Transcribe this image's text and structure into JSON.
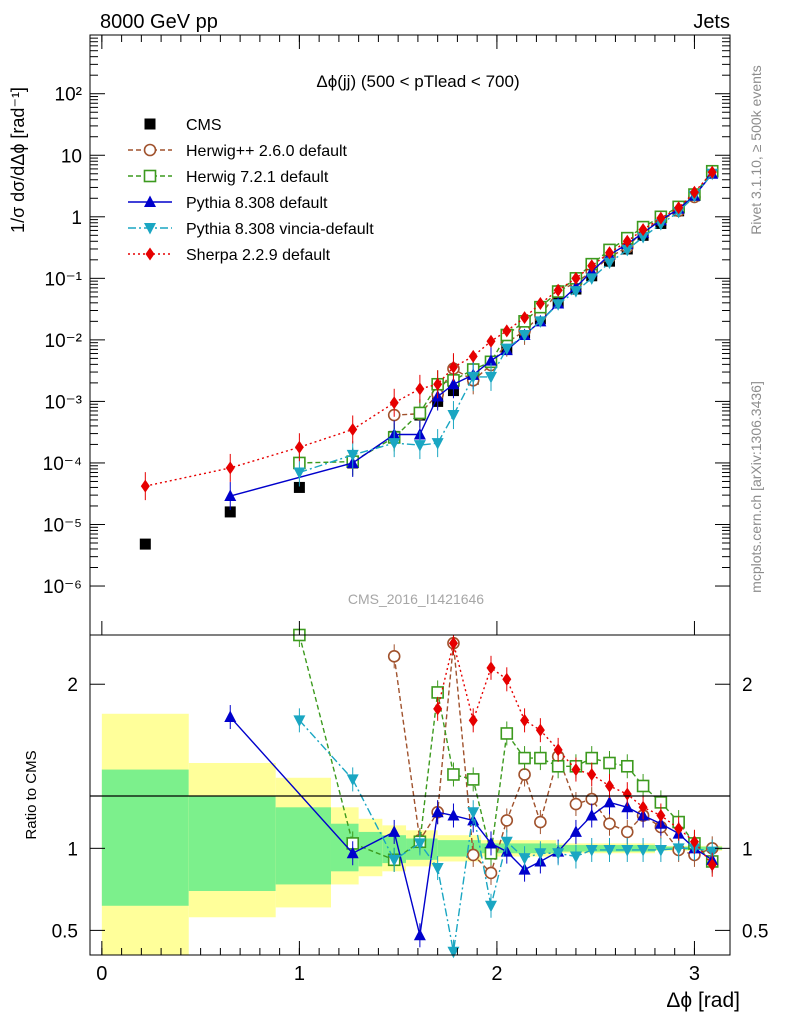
{
  "header": {
    "left": "8000 GeV pp",
    "right": "Jets"
  },
  "side": {
    "rivet": "Rivet 3.1.10, ≥ 500k events",
    "mcplots": "mcplots.cern.ch [arXiv:1306.3436]"
  },
  "watermark": "CMS_2016_I1421646",
  "colors": {
    "cms": "#000000",
    "herwigpp": "#a0522d",
    "herwig7": "#3c9a1e",
    "pythia": "#0000cc",
    "vincia": "#1aa6c2",
    "sherpa": "#e60000",
    "band_inner": "#7cf08c",
    "band_outer": "#ffff9a"
  },
  "chart_data": {
    "type": "line",
    "title": "Δϕ(jj) (500 < pTlead <  700)",
    "xlabel": "Δϕ [rad]",
    "ylabel": "1/σ dσ/dΔϕ [rad⁻¹]",
    "ratio_ylabel": "Ratio to CMS",
    "xlim": [
      -0.06,
      3.18
    ],
    "ylim_log": [
      1.6e-07,
      900.0
    ],
    "ratio_ylim": [
      0.35,
      2.3
    ],
    "x_ticks": [
      "0",
      "1",
      "2",
      "3"
    ],
    "y_ticks": [
      "10⁻⁶",
      "10⁻⁵",
      "10⁻⁴",
      "10⁻³",
      "10⁻²",
      "10⁻¹",
      "1",
      "10",
      "10²"
    ],
    "ratio_ticks": [
      "0.5",
      "1",
      "2"
    ],
    "bands": [
      {
        "lo": 0.0,
        "hi": 0.44,
        "inner": [
          0.65,
          1.48
        ],
        "outer": [
          0.35,
          1.82
        ]
      },
      {
        "lo": 0.44,
        "hi": 0.88,
        "inner": [
          0.74,
          1.32
        ],
        "outer": [
          0.58,
          1.52
        ]
      },
      {
        "lo": 0.88,
        "hi": 1.16,
        "inner": [
          0.78,
          1.25
        ],
        "outer": [
          0.64,
          1.43
        ]
      },
      {
        "lo": 1.16,
        "hi": 1.3,
        "inner": [
          0.86,
          1.15
        ],
        "outer": [
          0.78,
          1.25
        ]
      },
      {
        "lo": 1.3,
        "hi": 1.42,
        "inner": [
          0.89,
          1.1
        ],
        "outer": [
          0.83,
          1.18
        ]
      },
      {
        "lo": 1.42,
        "hi": 1.54,
        "inner": [
          0.91,
          1.08
        ],
        "outer": [
          0.86,
          1.14
        ]
      },
      {
        "lo": 1.54,
        "hi": 1.7,
        "inner": [
          0.93,
          1.06
        ],
        "outer": [
          0.89,
          1.11
        ]
      },
      {
        "lo": 1.7,
        "hi": 1.92,
        "inner": [
          0.95,
          1.05
        ],
        "outer": [
          0.92,
          1.08
        ]
      },
      {
        "lo": 1.92,
        "hi": 2.3,
        "inner": [
          0.97,
          1.03
        ],
        "outer": [
          0.95,
          1.05
        ]
      },
      {
        "lo": 2.3,
        "hi": 2.8,
        "inner": [
          0.98,
          1.02
        ],
        "outer": [
          0.97,
          1.03
        ]
      },
      {
        "lo": 2.8,
        "hi": 3.14,
        "inner": [
          0.99,
          1.01
        ],
        "outer": [
          0.985,
          1.015
        ]
      }
    ],
    "series": [
      {
        "name": "CMS",
        "marker": "square",
        "color": "#000000",
        "dash": "",
        "legend": "CMS",
        "x": [
          0.22,
          0.65,
          1.0,
          1.27,
          1.48,
          1.61,
          1.7,
          1.78,
          1.88,
          1.97,
          2.05,
          2.14,
          2.22,
          2.31,
          2.4,
          2.48,
          2.57,
          2.66,
          2.74,
          2.83,
          2.92,
          3.0,
          3.09
        ],
        "y": [
          4.8e-06,
          1.6e-05,
          4e-05,
          0.0001,
          0.00027,
          0.0006,
          0.001,
          0.0015,
          0.0023,
          0.0045,
          0.007,
          0.013,
          0.022,
          0.04,
          0.067,
          0.11,
          0.19,
          0.3,
          0.5,
          0.78,
          1.25,
          2.2,
          5.3
        ]
      },
      {
        "name": "Herwig++ 2.6.0 default",
        "marker": "circle-open",
        "color": "#a0522d",
        "dash": "5,3",
        "legend": "Herwig++ 2.6.0 default",
        "x": [
          1.48,
          1.61,
          1.7,
          1.78,
          1.88,
          1.97,
          2.05,
          2.14,
          2.22,
          2.31,
          2.4,
          2.48,
          2.57,
          2.66,
          2.74,
          2.83,
          2.92,
          3.0,
          3.09
        ],
        "y": [
          0.0006,
          0.00063,
          0.0013,
          0.0034,
          0.0022,
          0.0039,
          0.009,
          0.014,
          0.025,
          0.062,
          0.085,
          0.13,
          0.22,
          0.32,
          0.6,
          0.88,
          1.25,
          2.1,
          5.3
        ],
        "ratio": [
          2.17,
          1.05,
          1.22,
          2.25,
          0.96,
          0.85,
          1.17,
          1.45,
          1.16,
          1.56,
          1.27,
          1.3,
          1.15,
          1.1,
          1.2,
          1.13,
          0.99,
          0.96,
          1.0
        ]
      },
      {
        "name": "Herwig 7.2.1 default",
        "marker": "square-open",
        "color": "#3c9a1e",
        "dash": "5,3",
        "legend": "Herwig 7.2.1 default",
        "x": [
          1.0,
          1.27,
          1.48,
          1.61,
          1.7,
          1.78,
          1.88,
          1.97,
          2.05,
          2.14,
          2.22,
          2.31,
          2.4,
          2.48,
          2.57,
          2.66,
          2.74,
          2.83,
          2.92,
          3.0,
          3.09
        ],
        "y": [
          0.0001,
          0.000105,
          0.00026,
          0.00065,
          0.0019,
          0.0022,
          0.0033,
          0.0044,
          0.012,
          0.02,
          0.034,
          0.061,
          0.1,
          0.17,
          0.29,
          0.45,
          0.68,
          1.0,
          1.45,
          2.3,
          5.5
        ],
        "ratio": [
          2.3,
          1.03,
          0.93,
          1.04,
          1.95,
          1.45,
          1.42,
          0.97,
          1.7,
          1.55,
          1.55,
          1.5,
          1.5,
          1.55,
          1.52,
          1.5,
          1.38,
          1.28,
          1.16,
          1.03,
          0.92
        ]
      },
      {
        "name": "Pythia 8.308 default",
        "marker": "triangle-up",
        "color": "#0000cc",
        "dash": "",
        "legend": "Pythia 8.308 default",
        "x": [
          0.65,
          1.27,
          1.48,
          1.61,
          1.7,
          1.78,
          1.88,
          1.97,
          2.05,
          2.14,
          2.22,
          2.31,
          2.4,
          2.48,
          2.57,
          2.66,
          2.74,
          2.83,
          2.92,
          3.0,
          3.09
        ],
        "y": [
          2.9e-05,
          0.0001,
          0.00029,
          0.00029,
          0.0012,
          0.0019,
          0.0027,
          0.0046,
          0.0068,
          0.012,
          0.02,
          0.039,
          0.072,
          0.13,
          0.24,
          0.36,
          0.55,
          0.88,
          1.35,
          2.2,
          5.0
        ],
        "ratio": [
          1.8,
          0.97,
          1.1,
          0.47,
          1.22,
          1.2,
          1.17,
          1.03,
          0.98,
          0.87,
          0.92,
          0.98,
          1.1,
          1.2,
          1.28,
          1.25,
          1.2,
          1.15,
          1.09,
          1.0,
          0.93
        ]
      },
      {
        "name": "Pythia 8.308 vincia-default",
        "marker": "triangle-down",
        "color": "#1aa6c2",
        "dash": "8,3,2,3",
        "legend": "Pythia 8.308 vincia-default",
        "x": [
          1.0,
          1.27,
          1.48,
          1.61,
          1.7,
          1.78,
          1.88,
          1.97,
          2.05,
          2.14,
          2.22,
          2.31,
          2.4,
          2.48,
          2.57,
          2.66,
          2.74,
          2.83,
          2.92,
          3.0,
          3.09
        ],
        "y": [
          7e-05,
          0.000135,
          0.00021,
          0.000195,
          0.00021,
          0.0006,
          0.0025,
          0.0025,
          0.0072,
          0.012,
          0.02,
          0.038,
          0.062,
          0.1,
          0.18,
          0.29,
          0.47,
          0.76,
          1.2,
          2.2,
          5.0
        ],
        "ratio": [
          1.78,
          1.42,
          0.93,
          1.03,
          0.88,
          0.37,
          1.22,
          0.65,
          1.04,
          0.94,
          0.97,
          0.97,
          0.95,
          0.99,
          0.99,
          0.99,
          0.99,
          0.99,
          1.0,
          1.0,
          0.98
        ]
      },
      {
        "name": "Sherpa 2.2.9 default",
        "marker": "diamond",
        "color": "#e60000",
        "dash": "2,3",
        "legend": "Sherpa 2.2.9 default",
        "x": [
          0.22,
          0.65,
          1.0,
          1.27,
          1.48,
          1.61,
          1.7,
          1.78,
          1.88,
          1.97,
          2.05,
          2.14,
          2.22,
          2.31,
          2.4,
          2.48,
          2.57,
          2.66,
          2.74,
          2.83,
          2.92,
          3.0,
          3.09
        ],
        "y": [
          4.2e-05,
          8.3e-05,
          0.00018,
          0.00035,
          0.00095,
          0.0016,
          0.0019,
          0.0036,
          0.0054,
          0.0095,
          0.014,
          0.023,
          0.039,
          0.064,
          0.1,
          0.16,
          0.26,
          0.4,
          0.62,
          0.95,
          1.4,
          2.5,
          5.3
        ],
        "ratio": [
          null,
          null,
          null,
          null,
          null,
          null,
          1.85,
          2.25,
          1.78,
          2.1,
          2.03,
          1.78,
          1.72,
          1.6,
          1.48,
          1.45,
          1.38,
          1.33,
          1.25,
          1.2,
          1.12,
          1.04,
          0.9
        ]
      }
    ]
  }
}
